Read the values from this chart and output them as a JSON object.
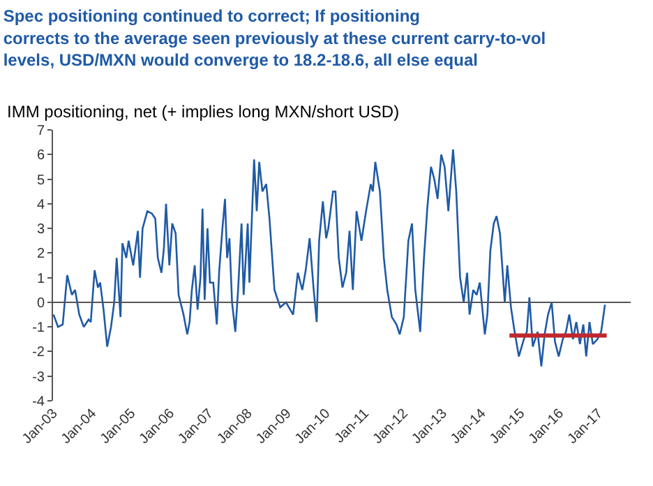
{
  "chart_data": {
    "type": "line",
    "title": "Spec positioning continued to correct; If positioning\ncorrects to the average seen previously at these current carry-to-vol\nlevels, USD/MXN would converge to 18.2-18.6, all else equal",
    "subtitle": "IMM positioning, net (+ implies long MXN/short USD)",
    "x": [
      "2003-01-05",
      "2003-02-17",
      "2003-04-02",
      "2003-05-14",
      "2003-06-27",
      "2003-07-27",
      "2003-09-04",
      "2003-10-16",
      "2003-12-01",
      "2003-12-21",
      "2004-01-26",
      "2004-02-26",
      "2004-03-18",
      "2004-04-19",
      "2004-05-23",
      "2004-06-28",
      "2004-07-28",
      "2004-08-20",
      "2004-09-25",
      "2004-10-13",
      "2004-11-18",
      "2004-12-10",
      "2005-01-22",
      "2005-03-07",
      "2005-03-27",
      "2005-04-20",
      "2005-06-04",
      "2005-07-17",
      "2005-08-17",
      "2005-09-10",
      "2005-10-14",
      "2005-11-06",
      "2005-11-26",
      "2005-12-27",
      "2006-01-23",
      "2006-02-24",
      "2006-03-24",
      "2006-05-09",
      "2006-06-13",
      "2006-07-05",
      "2006-07-26",
      "2006-08-22",
      "2006-09-18",
      "2006-10-15",
      "2006-11-03",
      "2006-11-23",
      "2006-12-20",
      "2007-01-12",
      "2007-02-12",
      "2007-03-17",
      "2007-04-09",
      "2007-05-09",
      "2007-06-02",
      "2007-06-22",
      "2007-07-14",
      "2007-08-07",
      "2007-09-07",
      "2007-10-03",
      "2007-11-04",
      "2007-11-24",
      "2008-01-01",
      "2008-01-17",
      "2008-03-01",
      "2008-03-26",
      "2008-04-18",
      "2008-05-18",
      "2008-06-23",
      "2008-07-23",
      "2008-09-08",
      "2008-11-01",
      "2008-12-25",
      "2009-03-02",
      "2009-04-15",
      "2009-05-27",
      "2009-06-28",
      "2009-08-04",
      "2009-09-09",
      "2009-10-09",
      "2009-11-01",
      "2009-12-06",
      "2010-01-06",
      "2010-01-26",
      "2010-03-11",
      "2010-04-03",
      "2010-05-04",
      "2010-06-08",
      "2010-07-13",
      "2010-08-13",
      "2010-09-13",
      "2010-10-18",
      "2010-12-03",
      "2011-01-15",
      "2011-02-28",
      "2011-03-20",
      "2011-04-12",
      "2011-05-25",
      "2011-07-01",
      "2011-08-02",
      "2011-09-14",
      "2011-10-27",
      "2011-11-27",
      "2012-01-04",
      "2012-02-16",
      "2012-03-21",
      "2012-04-21",
      "2012-06-06",
      "2012-07-10",
      "2012-08-11",
      "2012-09-15",
      "2012-10-16",
      "2012-11-16",
      "2012-12-20",
      "2013-01-21",
      "2013-02-25",
      "2013-04-10",
      "2013-05-10",
      "2013-06-15",
      "2013-07-19",
      "2013-08-20",
      "2013-09-12",
      "2013-10-16",
      "2013-11-17",
      "2013-12-17",
      "2014-02-02",
      "2014-02-26",
      "2014-03-26",
      "2014-04-27",
      "2014-05-23",
      "2014-06-24",
      "2014-08-08",
      "2014-09-01",
      "2014-10-05",
      "2014-11-05",
      "2014-12-18",
      "2015-02-03",
      "2015-03-03",
      "2015-03-27",
      "2015-04-28",
      "2015-06-12",
      "2015-07-17",
      "2015-08-17",
      "2015-09-18",
      "2015-10-22",
      "2015-11-22",
      "2015-12-27",
      "2016-02-03",
      "2016-03-04",
      "2016-04-04",
      "2016-05-09",
      "2016-06-09",
      "2016-07-13",
      "2016-08-14",
      "2016-09-10",
      "2016-10-11",
      "2016-11-11",
      "2016-12-24",
      "2017-01-28",
      "2017-03-05"
    ],
    "series": [
      {
        "color": "#1f5aa6",
        "values": [
          -0.5,
          -1.0,
          -0.9,
          1.1,
          0.3,
          0.5,
          -0.5,
          -1.0,
          -0.7,
          -0.8,
          1.3,
          0.6,
          0.8,
          -0.3,
          -1.8,
          -1.0,
          0.0,
          1.8,
          -0.6,
          2.4,
          1.8,
          2.5,
          1.5,
          2.9,
          1.0,
          3.0,
          3.7,
          3.6,
          3.4,
          1.8,
          1.2,
          2.2,
          4.0,
          1.5,
          3.2,
          2.8,
          0.3,
          -0.5,
          -1.3,
          -0.8,
          0.5,
          1.5,
          -0.3,
          1.0,
          3.8,
          0.1,
          3.0,
          0.8,
          0.8,
          -0.9,
          1.3,
          3.0,
          4.2,
          1.8,
          2.6,
          0.0,
          -1.2,
          0.5,
          3.2,
          0.3,
          3.2,
          0.8,
          5.8,
          3.7,
          5.7,
          4.5,
          4.8,
          3.4,
          0.5,
          -0.2,
          0.0,
          -0.5,
          1.2,
          0.5,
          1.3,
          2.6,
          0.6,
          -0.8,
          2.5,
          4.1,
          2.6,
          3.0,
          4.5,
          4.5,
          1.8,
          0.6,
          1.2,
          2.9,
          0.5,
          3.7,
          2.5,
          3.7,
          4.8,
          4.5,
          5.7,
          4.5,
          1.8,
          0.5,
          -0.6,
          -0.9,
          -1.3,
          -0.6,
          2.5,
          3.2,
          0.5,
          -1.2,
          1.7,
          3.8,
          5.5,
          5.0,
          4.2,
          6.0,
          5.5,
          3.7,
          6.2,
          4.5,
          1.0,
          0.0,
          1.2,
          -0.5,
          0.5,
          0.3,
          0.8,
          -1.3,
          -0.5,
          2.1,
          3.2,
          3.5,
          2.8,
          0.0,
          1.5,
          -0.2,
          -1.1,
          -2.2,
          -1.5,
          -1.2,
          0.2,
          -1.8,
          -1.2,
          -2.6,
          -1.3,
          -0.5,
          0.0,
          -1.6,
          -2.2,
          -1.5,
          -1.2,
          -0.5,
          -1.5,
          -0.8,
          -1.7,
          -0.9,
          -2.2,
          -0.8,
          -1.7,
          -1.5,
          -1.2,
          -0.1
        ]
      },
      {
        "type": "line",
        "color": "#c0282d",
        "x": [
          "2014-09-21",
          "2017-03-21"
        ],
        "values": [
          -1.35,
          -1.35
        ]
      }
    ],
    "xlim": [
      "2003-01-01",
      "2017-11-01"
    ],
    "xticks": [
      {
        "value": "2003-01",
        "label": "Jan-03"
      },
      {
        "value": "2004-01",
        "label": "Jan-04"
      },
      {
        "value": "2005-01",
        "label": "Jan-05"
      },
      {
        "value": "2006-01",
        "label": "Jan-06"
      },
      {
        "value": "2007-01",
        "label": "Jan-07"
      },
      {
        "value": "2008-01",
        "label": "Jan-08"
      },
      {
        "value": "2009-01",
        "label": "Jan-09"
      },
      {
        "value": "2010-01",
        "label": "Jan-10"
      },
      {
        "value": "2011-01",
        "label": "Jan-11"
      },
      {
        "value": "2012-01",
        "label": "Jan-12"
      },
      {
        "value": "2013-01",
        "label": "Jan-13"
      },
      {
        "value": "2014-01",
        "label": "Jan-14"
      },
      {
        "value": "2015-01",
        "label": "Jan-15"
      },
      {
        "value": "2016-01",
        "label": "Jan-16"
      },
      {
        "value": "2017-01",
        "label": "Jan-17"
      }
    ],
    "ylim": [
      -4,
      7
    ],
    "yticks": [
      -4,
      -3,
      -2,
      -1,
      0,
      1,
      2,
      3,
      4,
      5,
      6,
      7
    ],
    "ref_lines": [
      {
        "axis": "y",
        "value": 0,
        "color": "#555555"
      }
    ],
    "marker": "none",
    "line_style": "solid"
  }
}
